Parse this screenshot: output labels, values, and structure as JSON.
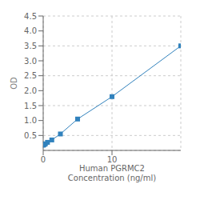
{
  "chart_data": {
    "type": "line",
    "x": [
      0,
      0.156,
      0.313,
      0.625,
      1.25,
      2.5,
      5,
      10,
      20
    ],
    "values": [
      0.175,
      0.195,
      0.22,
      0.27,
      0.35,
      0.55,
      1.05,
      1.8,
      3.5
    ],
    "xlabel": "Human PGRMC2\nConcentration (ng/ml)",
    "ylabel": "OD",
    "xlim": [
      0,
      20
    ],
    "ylim": [
      0,
      4.5
    ],
    "xticks": [
      0,
      10
    ],
    "yticks": [
      0.5,
      {
        "value": 1,
        "label": "1.0"
      },
      1.5,
      {
        "value": 2,
        "label": "2.0"
      },
      2.5,
      {
        "value": 3,
        "label": "3.0"
      },
      3.5,
      {
        "value": 4,
        "label": "4.0"
      },
      4.5
    ],
    "grid": true,
    "marker": "square"
  }
}
